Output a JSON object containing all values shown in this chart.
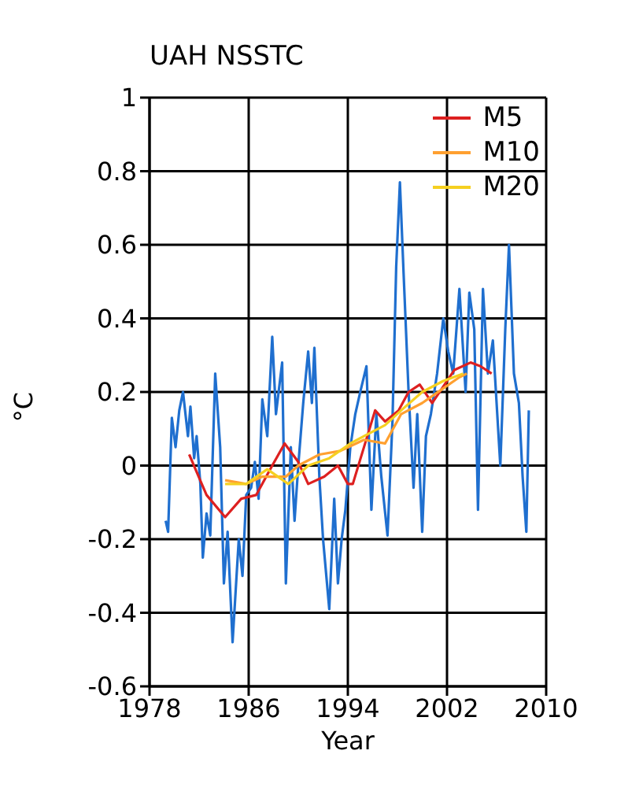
{
  "chart_data": {
    "type": "line",
    "title": "UAH NSSTC",
    "xlabel": "Year",
    "ylabel": "°C",
    "xlim": [
      1978,
      2010
    ],
    "xticks": [
      1978,
      1986,
      1994,
      2002,
      2010
    ],
    "ylim": [
      -0.6,
      1
    ],
    "yticks": [
      -0.6,
      -0.4,
      -0.2,
      0,
      0.2,
      0.4,
      0.6,
      0.8,
      1
    ],
    "grid": true,
    "legend": "top right",
    "series": [
      {
        "color": "#1f6fcf",
        "x": [
          1979.3,
          1979.5,
          1979.8,
          1980.1,
          1980.4,
          1980.7,
          1981.1,
          1981.3,
          1981.6,
          1981.8,
          1982.1,
          1982.3,
          1982.6,
          1982.9,
          1983.3,
          1983.7,
          1984.0,
          1984.3,
          1984.7,
          1985.2,
          1985.5,
          1985.8,
          1986.2,
          1986.5,
          1986.8,
          1987.1,
          1987.5,
          1987.9,
          1988.2,
          1988.7,
          1989.0,
          1989.4,
          1989.7,
          1990.0,
          1990.4,
          1990.8,
          1991.1,
          1991.3,
          1991.7,
          1992.0,
          1992.5,
          1992.9,
          1993.2,
          1993.5,
          1993.8,
          1994.2,
          1994.6,
          1995.0,
          1995.5,
          1995.9,
          1996.3,
          1996.7,
          1997.2,
          1997.6,
          1997.9,
          1998.2,
          1998.5,
          1998.9,
          1999.3,
          1999.6,
          2000.0,
          2000.3,
          2000.7,
          2001.2,
          2001.7,
          2002.1,
          2002.5,
          2003.0,
          2003.5,
          2003.8,
          2004.2,
          2004.5,
          2004.9,
          2005.3,
          2005.7,
          2006.3,
          2006.7,
          2007.0,
          2007.4,
          2007.8,
          2008.1,
          2008.4,
          2008.6
        ],
        "values": [
          -0.15,
          -0.18,
          0.13,
          0.05,
          0.15,
          0.2,
          0.08,
          0.16,
          0.02,
          0.08,
          -0.05,
          -0.25,
          -0.13,
          -0.19,
          0.25,
          0.05,
          -0.32,
          -0.18,
          -0.48,
          -0.2,
          -0.3,
          -0.08,
          -0.06,
          0.01,
          -0.09,
          0.18,
          0.08,
          0.35,
          0.14,
          0.28,
          -0.32,
          0.05,
          -0.15,
          0.0,
          0.17,
          0.31,
          0.17,
          0.32,
          -0.03,
          -0.2,
          -0.39,
          -0.09,
          -0.32,
          -0.2,
          -0.12,
          0.05,
          0.14,
          0.2,
          0.27,
          -0.12,
          0.14,
          -0.03,
          -0.19,
          0.12,
          0.54,
          0.77,
          0.52,
          0.2,
          -0.06,
          0.14,
          -0.18,
          0.08,
          0.14,
          0.25,
          0.4,
          0.31,
          0.25,
          0.48,
          0.2,
          0.47,
          0.37,
          -0.12,
          0.48,
          0.25,
          0.34,
          0.0,
          0.37,
          0.6,
          0.25,
          0.17,
          -0.03,
          -0.18,
          0.15
        ]
      },
      {
        "name": "M5",
        "color": "#dd2020",
        "x": [
          1981.2,
          1982.6,
          1984.1,
          1985.4,
          1986.6,
          1987.9,
          1988.9,
          1990.0,
          1990.8,
          1992.1,
          1993.2,
          1994.0,
          1994.4,
          1995.3,
          1996.2,
          1997.0,
          1998.1,
          1998.9,
          1999.8,
          2000.8,
          2001.6,
          2002.6,
          2003.9,
          2004.7,
          2005.6
        ],
        "values": [
          0.03,
          -0.08,
          -0.14,
          -0.09,
          -0.08,
          0.0,
          0.06,
          0.01,
          -0.05,
          -0.03,
          0.0,
          -0.05,
          -0.05,
          0.05,
          0.15,
          0.12,
          0.15,
          0.2,
          0.22,
          0.17,
          0.21,
          0.26,
          0.28,
          0.27,
          0.25
        ]
      },
      {
        "name": "M10",
        "color": "#ffa030",
        "x": [
          1984.1,
          1985.8,
          1987.1,
          1989.0,
          1990.0,
          1991.7,
          1993.4,
          1995.3,
          1997.0,
          1998.3,
          2000.0,
          2001.7,
          2003.0,
          2003.6
        ],
        "values": [
          -0.04,
          -0.05,
          -0.03,
          -0.03,
          0.0,
          0.03,
          0.04,
          0.07,
          0.06,
          0.14,
          0.17,
          0.21,
          0.24,
          0.25
        ]
      },
      {
        "name": "M20",
        "color": "#f5d020",
        "x": [
          1984.1,
          1985.8,
          1987.5,
          1989.2,
          1990.8,
          1992.5,
          1994.2,
          1995.3,
          1997.0,
          1998.3,
          2000.0,
          2001.7,
          2003.3
        ],
        "values": [
          -0.05,
          -0.05,
          -0.01,
          -0.05,
          0.0,
          0.02,
          0.06,
          0.08,
          0.11,
          0.15,
          0.2,
          0.23,
          0.25
        ]
      }
    ]
  }
}
